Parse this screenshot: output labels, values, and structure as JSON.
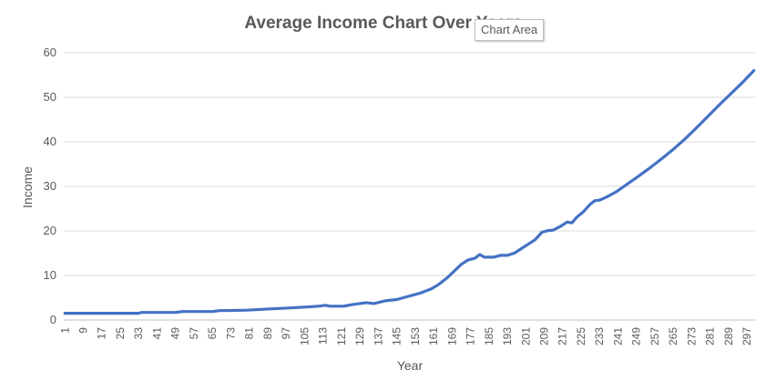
{
  "chart_data": {
    "type": "line",
    "title": "Average Income Chart Over Years",
    "xlabel": "Year",
    "ylabel": "Income",
    "ylim": [
      0,
      60
    ],
    "yticks": [
      0,
      10,
      20,
      30,
      40,
      50,
      60
    ],
    "grid": true,
    "legend": "none",
    "x_range": [
      1,
      300
    ],
    "xtick_labels": [
      "1",
      "9",
      "17",
      "25",
      "33",
      "41",
      "49",
      "57",
      "65",
      "73",
      "81",
      "89",
      "97",
      "105",
      "113",
      "121",
      "129",
      "137",
      "145",
      "153",
      "161",
      "169",
      "177",
      "185",
      "193",
      "201",
      "209",
      "217",
      "225",
      "233",
      "241",
      "249",
      "257",
      "265",
      "273",
      "281",
      "289",
      "297"
    ],
    "series": [
      {
        "color": "#4472c4",
        "points": [
          [
            1,
            1.5
          ],
          [
            20,
            1.5
          ],
          [
            33,
            1.5
          ],
          [
            34,
            1.7
          ],
          [
            49,
            1.7
          ],
          [
            52,
            1.9
          ],
          [
            65,
            1.9
          ],
          [
            68,
            2.1
          ],
          [
            80,
            2.2
          ],
          [
            90,
            2.5
          ],
          [
            98,
            2.7
          ],
          [
            105,
            2.9
          ],
          [
            111,
            3.1
          ],
          [
            114,
            3.3
          ],
          [
            116,
            3.1
          ],
          [
            122,
            3.1
          ],
          [
            126,
            3.5
          ],
          [
            132,
            3.9
          ],
          [
            135,
            3.7
          ],
          [
            140,
            4.3
          ],
          [
            145,
            4.6
          ],
          [
            150,
            5.3
          ],
          [
            155,
            6.0
          ],
          [
            160,
            7.0
          ],
          [
            163,
            7.9
          ],
          [
            167,
            9.5
          ],
          [
            170,
            11.0
          ],
          [
            173,
            12.5
          ],
          [
            176,
            13.5
          ],
          [
            179,
            13.9
          ],
          [
            181,
            14.7
          ],
          [
            183,
            14.1
          ],
          [
            187,
            14.1
          ],
          [
            190,
            14.5
          ],
          [
            193,
            14.5
          ],
          [
            196,
            15.0
          ],
          [
            199,
            16.0
          ],
          [
            202,
            17.0
          ],
          [
            205,
            18.0
          ],
          [
            208,
            19.7
          ],
          [
            210,
            20.0
          ],
          [
            213,
            20.2
          ],
          [
            216,
            21.0
          ],
          [
            219,
            22.0
          ],
          [
            221,
            21.8
          ],
          [
            223,
            23.0
          ],
          [
            226,
            24.3
          ],
          [
            229,
            26.0
          ],
          [
            231,
            26.8
          ],
          [
            233,
            26.9
          ],
          [
            236,
            27.6
          ],
          [
            240,
            28.7
          ],
          [
            245,
            30.5
          ],
          [
            250,
            32.3
          ],
          [
            255,
            34.2
          ],
          [
            260,
            36.2
          ],
          [
            265,
            38.3
          ],
          [
            270,
            40.6
          ],
          [
            275,
            43.1
          ],
          [
            280,
            45.7
          ],
          [
            285,
            48.3
          ],
          [
            290,
            50.8
          ],
          [
            295,
            53.3
          ],
          [
            300,
            56.0
          ]
        ]
      }
    ]
  },
  "chart_area_tooltip": "Chart Area"
}
